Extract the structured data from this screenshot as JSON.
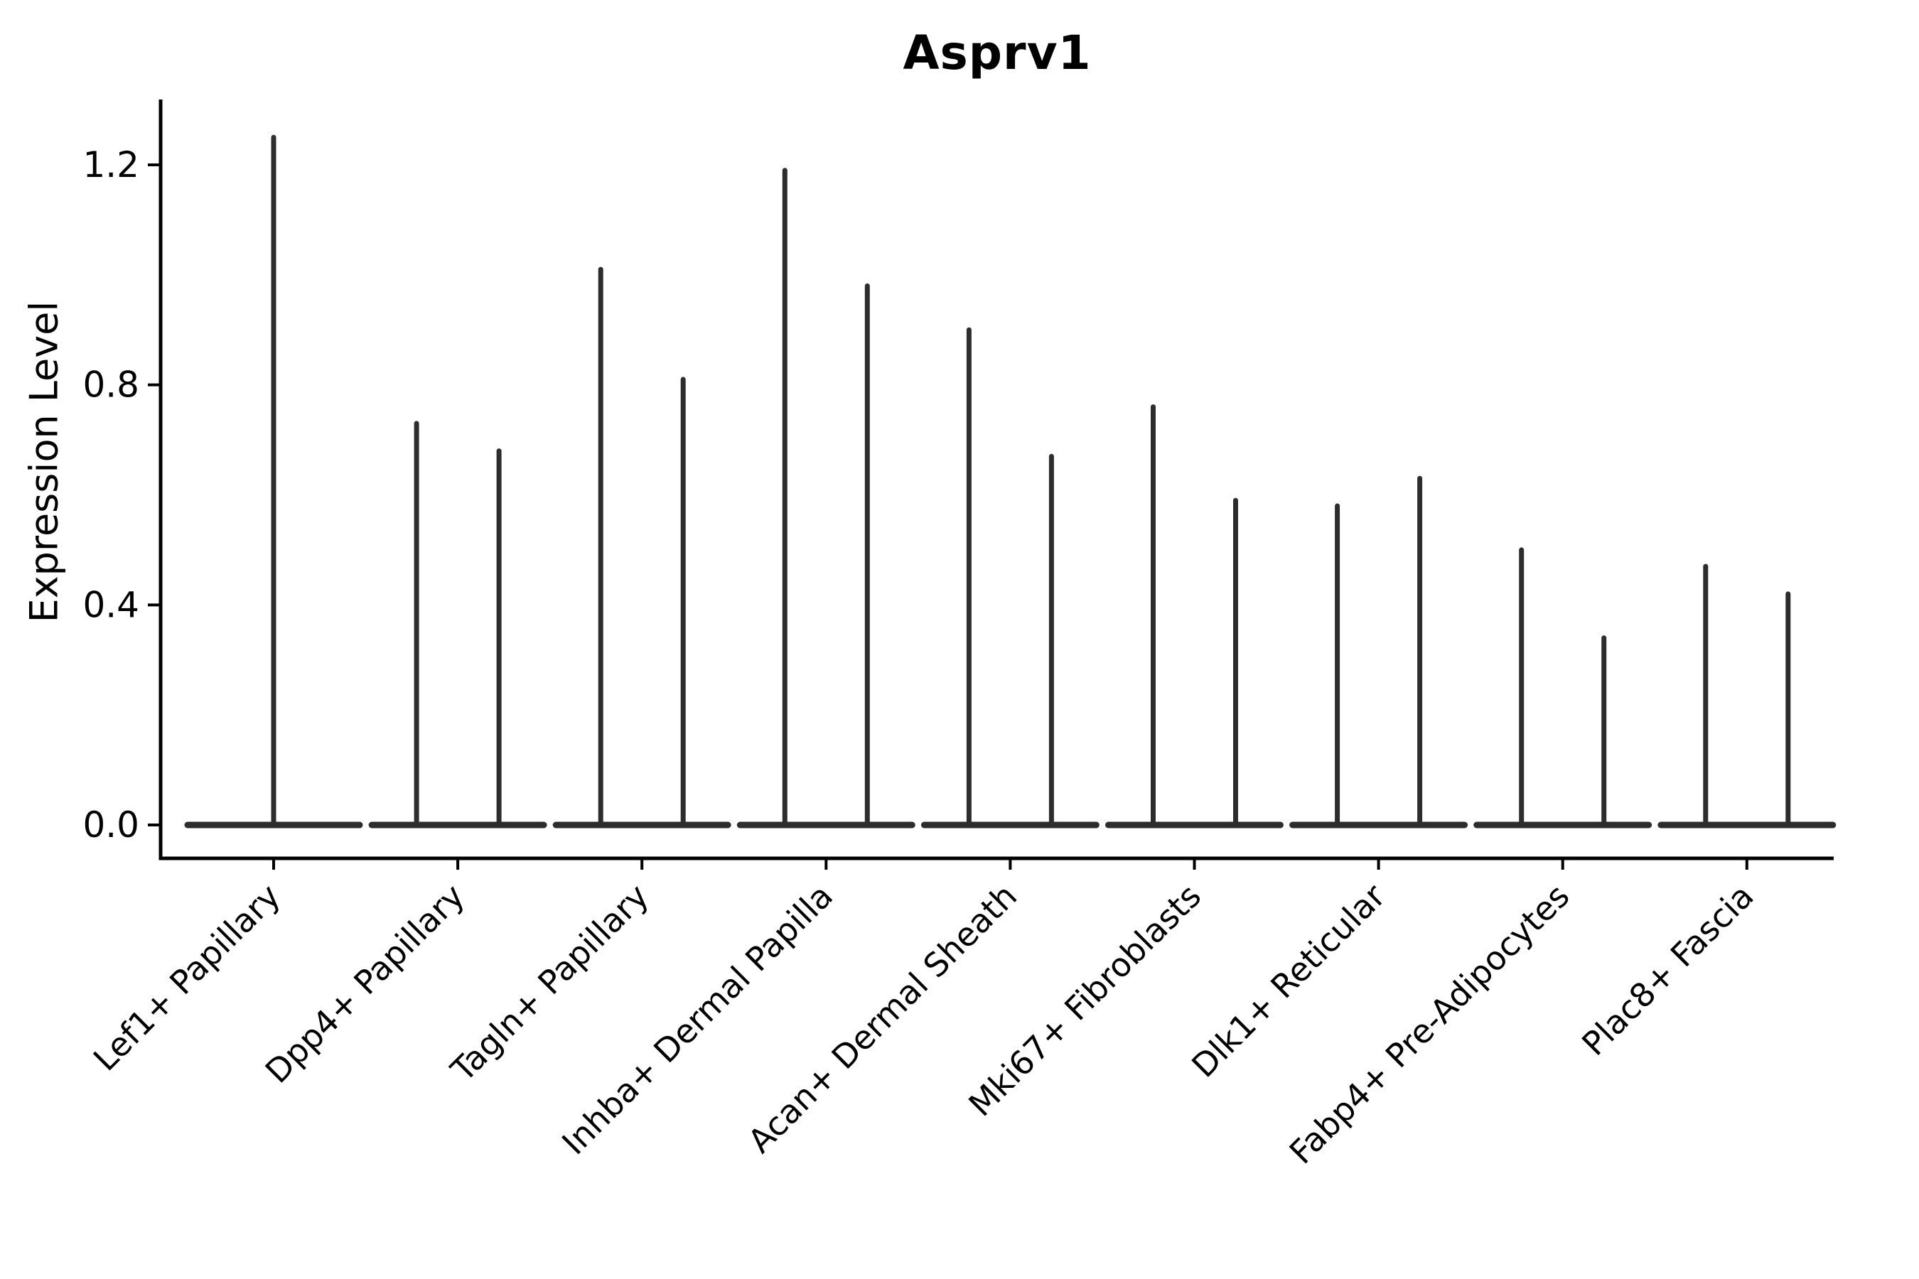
{
  "chart_data": {
    "type": "violin",
    "title": "Asprv1",
    "ylabel": "Expression Level",
    "xlabel": "",
    "categories": [
      "Lef1+ Papillary",
      "Dpp4+ Papillary",
      "Tagln+ Papillary",
      "Inhba+ Dermal Papilla",
      "Acan+ Dermal Sheath",
      "Mki67+ Fibroblasts",
      "Dlk1+ Reticular",
      "Fabp4+ Pre-Adipocytes",
      "Plac8+ Fascia"
    ],
    "violin_max_values": [
      [
        1.25
      ],
      [
        0.73,
        0.68
      ],
      [
        1.01,
        0.81
      ],
      [
        1.19,
        0.98
      ],
      [
        0.9,
        0.67
      ],
      [
        0.76,
        0.59
      ],
      [
        0.58,
        0.63
      ],
      [
        0.5,
        0.34
      ],
      [
        0.47,
        0.42
      ]
    ],
    "baseline_value": 0.0,
    "yticks": [
      0.0,
      0.4,
      0.8,
      1.2
    ],
    "ytick_labels": [
      "0.0",
      "0.4",
      "0.8",
      "1.2"
    ],
    "ylim": [
      -0.06,
      1.32
    ],
    "grid": false,
    "legend": "none",
    "violin_color": "#2d2d2d",
    "axis_color": "#000000",
    "background_color": "#ffffff"
  }
}
